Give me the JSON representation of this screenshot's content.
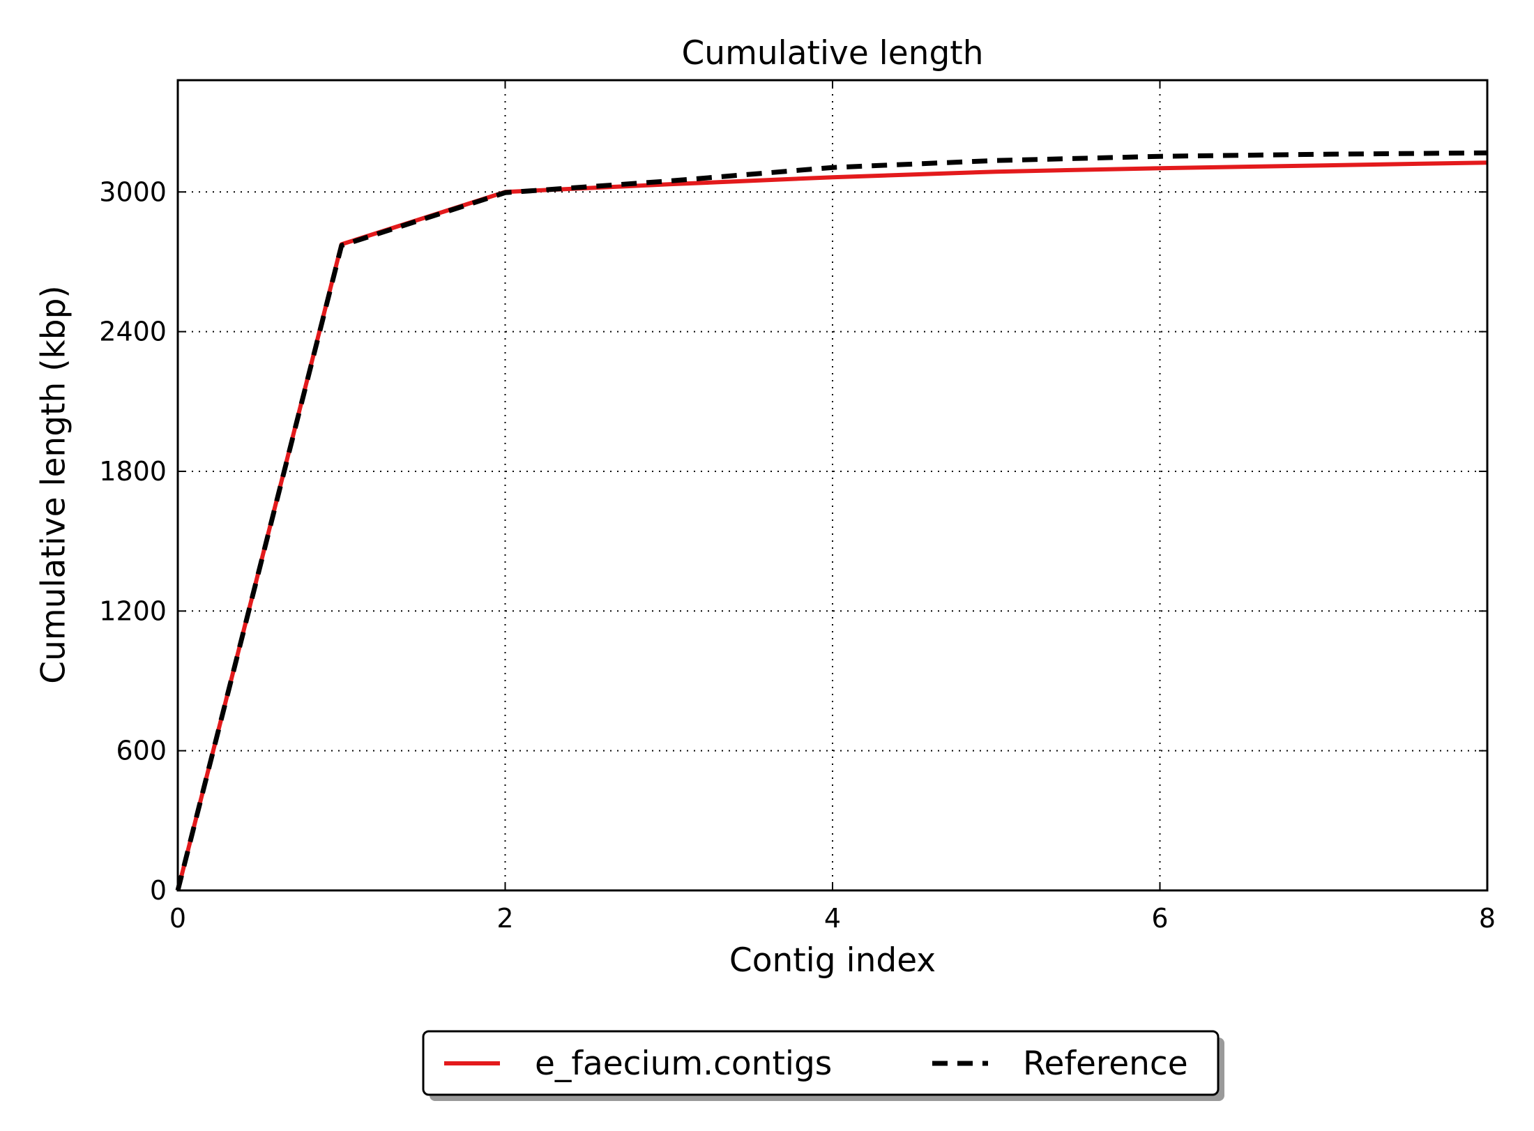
{
  "chart_data": {
    "type": "line",
    "title": "Cumulative length",
    "xlabel": "Contig index",
    "ylabel": "Cumulative length (kbp)",
    "xlim": [
      0,
      8
    ],
    "ylim": [
      0,
      3480
    ],
    "xticks": [
      0,
      2,
      4,
      6,
      8
    ],
    "yticks": [
      0,
      600,
      1200,
      1800,
      2400,
      3000
    ],
    "grid": true,
    "grid_style": "dotted",
    "legend_position": "bottom-center",
    "series": [
      {
        "name": "e_faecium.contigs",
        "color": "#e31a1c",
        "line_style": "solid",
        "x": [
          0,
          1,
          2,
          3,
          4,
          5,
          6,
          7,
          8
        ],
        "y": [
          0,
          2775,
          3000,
          3033,
          3063,
          3087,
          3102,
          3114,
          3126
        ]
      },
      {
        "name": "Reference",
        "color": "#000000",
        "line_style": "dashed",
        "x": [
          0,
          1,
          2,
          3,
          4,
          5,
          6,
          7,
          8
        ],
        "y": [
          0,
          2770,
          2997,
          3047,
          3105,
          3135,
          3153,
          3162,
          3168
        ]
      }
    ]
  }
}
